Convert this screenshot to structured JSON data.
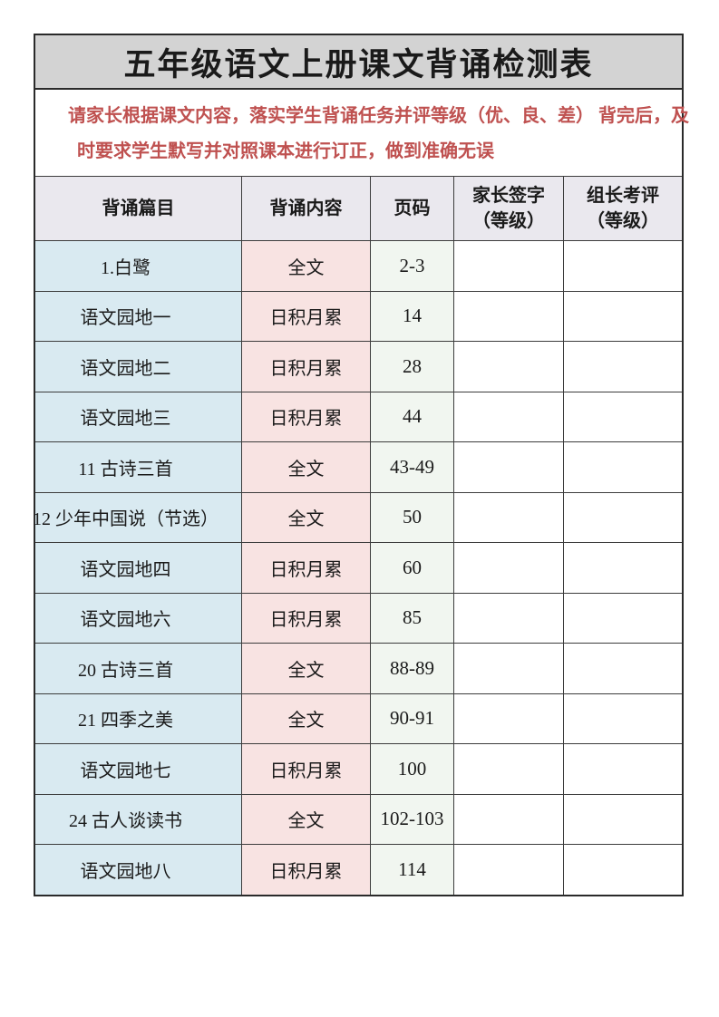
{
  "page": {
    "title": "五年级语文上册课文背诵检测表",
    "notice": {
      "line1": "请家长根据课文内容，落实学生背诵任务并评等级（优、良、差） 背完后，及",
      "line2": "时要求学生默写并对照课本进行订正，做到准确无误"
    },
    "colors": {
      "title_bg": "#d3d3d3",
      "header_bg": "#eae8ee",
      "title_col_bg": "#d9eaf1",
      "content_col_bg": "#f8e3e2",
      "pages_col_bg": "#f1f6f0",
      "notice_text": "#bf5150",
      "border": "#3c3c3c"
    }
  },
  "table": {
    "columns": [
      {
        "label": "背诵篇目"
      },
      {
        "label": "背诵内容"
      },
      {
        "label": "页码"
      },
      {
        "label": "家长签字",
        "label2": "（等级）"
      },
      {
        "label": "组长考评",
        "label2": "（等级）"
      }
    ],
    "rows": [
      {
        "title": "1.白鹭",
        "content": "全文",
        "pages": "2-3",
        "parent_sign": "",
        "leader_eval": ""
      },
      {
        "title": "语文园地一",
        "content": "日积月累",
        "pages": "14",
        "parent_sign": "",
        "leader_eval": ""
      },
      {
        "title": "语文园地二",
        "content": "日积月累",
        "pages": "28",
        "parent_sign": "",
        "leader_eval": ""
      },
      {
        "title": "语文园地三",
        "content": "日积月累",
        "pages": "44",
        "parent_sign": "",
        "leader_eval": ""
      },
      {
        "title": "11 古诗三首",
        "content": "全文",
        "pages": "43-49",
        "parent_sign": "",
        "leader_eval": ""
      },
      {
        "title": "12 少年中国说（节选）",
        "content": "全文",
        "pages": "50",
        "parent_sign": "",
        "leader_eval": ""
      },
      {
        "title": "语文园地四",
        "content": "日积月累",
        "pages": "60",
        "parent_sign": "",
        "leader_eval": ""
      },
      {
        "title": "语文园地六",
        "content": "日积月累",
        "pages": "85",
        "parent_sign": "",
        "leader_eval": ""
      },
      {
        "title": "20 古诗三首",
        "content": "全文",
        "pages": "88-89",
        "parent_sign": "",
        "leader_eval": ""
      },
      {
        "title": "21 四季之美",
        "content": "全文",
        "pages": "90-91",
        "parent_sign": "",
        "leader_eval": ""
      },
      {
        "title": "语文园地七",
        "content": "日积月累",
        "pages": "100",
        "parent_sign": "",
        "leader_eval": ""
      },
      {
        "title": "24 古人谈读书",
        "content": "全文",
        "pages": "102-103",
        "parent_sign": "",
        "leader_eval": ""
      },
      {
        "title": "语文园地八",
        "content": "日积月累",
        "pages": "114",
        "parent_sign": "",
        "leader_eval": ""
      }
    ]
  }
}
